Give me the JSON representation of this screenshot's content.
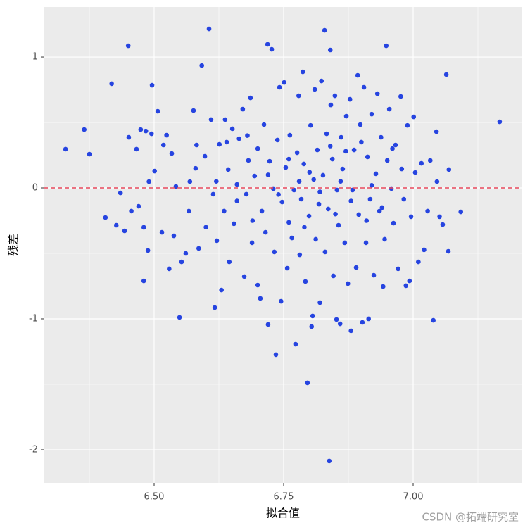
{
  "chart_data": {
    "type": "scatter",
    "x_label": "拟合值",
    "y_label": "残差",
    "watermark": "CSDN @拓端研究室",
    "color": "#2644e0",
    "hline": {
      "value": 0,
      "color": "#e8485c"
    },
    "xlim": [
      6.2867,
      7.2106
    ],
    "ylim": [
      -2.253,
      1.382
    ],
    "xticks": [
      {
        "value": 6.5,
        "label": "6.50"
      },
      {
        "value": 6.75,
        "label": "6.75"
      },
      {
        "value": 7.0,
        "label": "7.00"
      }
    ],
    "yticks": [
      1,
      0,
      -1,
      -2
    ],
    "minor_xticks": [
      6.375,
      6.625,
      6.875,
      7.125
    ],
    "minor_yticks": [
      0.5,
      -0.5,
      -1.5
    ],
    "grid": true,
    "x": [
      6.329,
      6.365,
      6.375,
      6.406,
      6.418,
      6.427,
      6.435,
      6.443,
      6.45,
      6.451,
      6.456,
      6.466,
      6.47,
      6.474,
      6.48,
      6.48,
      6.484,
      6.488,
      6.49,
      6.496,
      6.495,
      6.501,
      6.507,
      6.515,
      6.518,
      6.524,
      6.529,
      6.534,
      6.538,
      6.542,
      6.549,
      6.553,
      6.561,
      6.567,
      6.569,
      6.576,
      6.582,
      6.586,
      6.592,
      6.598,
      6.606,
      6.61,
      6.614,
      6.617,
      6.621,
      6.626,
      6.63,
      6.635,
      6.637,
      6.643,
      6.645,
      6.651,
      6.654,
      6.66,
      6.664,
      6.671,
      6.674,
      6.678,
      6.682,
      6.686,
      6.689,
      6.694,
      6.7,
      6.705,
      6.708,
      6.712,
      6.715,
      6.719,
      6.72,
      6.723,
      6.727,
      6.73,
      6.732,
      6.735,
      6.738,
      6.742,
      6.745,
      6.747,
      6.751,
      6.754,
      6.757,
      6.76,
      6.762,
      6.766,
      6.77,
      6.773,
      6.776,
      6.779,
      6.781,
      6.784,
      6.787,
      6.789,
      6.792,
      6.796,
      6.799,
      6.802,
      6.804,
      6.806,
      6.808,
      6.81,
      6.812,
      6.815,
      6.818,
      6.82,
      6.823,
      6.826,
      6.829,
      6.83,
      6.833,
      6.836,
      6.838,
      6.84,
      6.841,
      6.844,
      6.846,
      6.849,
      6.852,
      6.853,
      6.856,
      6.859,
      6.861,
      6.864,
      6.868,
      6.871,
      6.874,
      6.878,
      6.88,
      6.883,
      6.886,
      6.89,
      6.893,
      6.895,
      6.898,
      6.902,
      6.905,
      6.909,
      6.912,
      6.914,
      6.917,
      6.92,
      6.924,
      6.928,
      6.931,
      6.935,
      6.938,
      6.942,
      6.945,
      6.948,
      6.95,
      6.954,
      6.958,
      6.962,
      6.966,
      6.971,
      6.976,
      6.978,
      6.982,
      6.986,
      6.989,
      6.993,
      6.996,
      7.001,
      7.004,
      7.01,
      7.016,
      7.021,
      7.028,
      7.033,
      7.039,
      7.045,
      7.046,
      7.051,
      7.057,
      7.064,
      7.068,
      7.069,
      7.092,
      7.167,
      6.72,
      6.74,
      6.76,
      6.78,
      6.79,
      6.8,
      6.82,
      6.84,
      6.85,
      6.86,
      6.87,
      6.88,
      6.9,
      6.91,
      6.92,
      6.7,
      6.69,
      6.68,
      6.66,
      6.64,
      6.62,
      6.6,
      6.58,
      6.94,
      6.96
    ],
    "values": [
      0.296,
      0.446,
      0.258,
      -0.226,
      0.796,
      -0.285,
      -0.038,
      -0.328,
      1.086,
      0.387,
      -0.177,
      0.296,
      -0.14,
      0.446,
      -0.301,
      -0.71,
      0.435,
      -0.478,
      0.048,
      0.785,
      0.414,
      0.129,
      0.586,
      -0.339,
      0.328,
      0.403,
      -0.618,
      0.263,
      -0.366,
      0.011,
      -0.989,
      -0.565,
      -0.5,
      -0.177,
      0.048,
      0.591,
      0.328,
      -0.462,
      0.935,
      0.242,
      1.215,
      0.522,
      -0.048,
      -0.914,
      -0.403,
      0.333,
      -0.78,
      -0.177,
      0.522,
      0.14,
      -0.565,
      0.452,
      -0.274,
      0.027,
      0.376,
      0.602,
      -0.677,
      -0.048,
      0.21,
      0.688,
      -0.419,
      0.091,
      -0.742,
      -0.844,
      -0.177,
      0.484,
      -0.339,
      1.097,
      -1.043,
      0.204,
      1.059,
      -0.005,
      -0.489,
      -1.274,
      0.366,
      0.769,
      -0.866,
      -0.108,
      0.806,
      0.156,
      -0.613,
      -0.263,
      0.403,
      -0.382,
      -0.016,
      -1.194,
      0.269,
      0.704,
      -0.511,
      -0.086,
      0.887,
      0.183,
      -0.715,
      -1.489,
      -0.215,
      0.478,
      -1.059,
      -0.978,
      0.065,
      0.753,
      -0.392,
      0.29,
      -0.124,
      -0.876,
      0.817,
      0.097,
      1.204,
      -0.489,
      0.414,
      -0.161,
      -2.086,
      1.054,
      0.634,
      0.22,
      -0.672,
      0.704,
      -1.005,
      -0.016,
      -0.285,
      -1.038,
      0.387,
      0.145,
      -0.419,
      0.548,
      -0.731,
      0.677,
      -1.091,
      -0.016,
      0.29,
      -0.608,
      0.86,
      -0.204,
      0.484,
      -1.027,
      0.769,
      -0.419,
      0.237,
      -1.0,
      -0.086,
      0.564,
      -0.667,
      0.108,
      0.72,
      -0.177,
      0.387,
      -0.753,
      -0.392,
      1.086,
      0.21,
      0.602,
      -0.005,
      -0.269,
      0.328,
      -0.618,
      0.699,
      0.145,
      -0.086,
      -0.747,
      0.478,
      -0.71,
      -0.22,
      0.543,
      0.118,
      -0.565,
      0.188,
      -0.473,
      -0.177,
      0.21,
      -1.011,
      0.43,
      0.048,
      -0.22,
      -0.28,
      0.866,
      -0.484,
      0.14,
      -0.183,
      0.505,
      0.1,
      -0.05,
      0.22,
      0.05,
      -0.3,
      0.12,
      -0.03,
      0.32,
      -0.2,
      0.05,
      0.28,
      -0.1,
      0.35,
      -0.25,
      0.02,
      0.3,
      -0.25,
      0.4,
      -0.1,
      0.35,
      0.05,
      -0.3,
      0.15,
      -0.15,
      0.3
    ]
  }
}
